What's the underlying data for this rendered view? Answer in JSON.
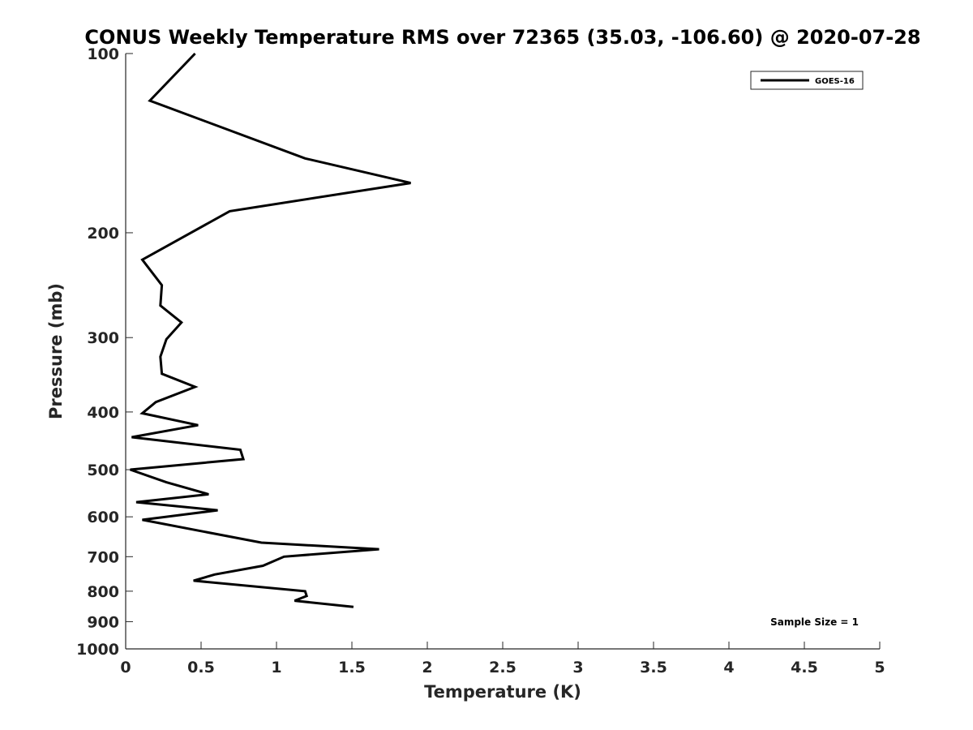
{
  "chart_data": {
    "type": "line",
    "title": "CONUS Weekly Temperature RMS over 72365 (35.03, -106.60) @ 2020-07-28",
    "xlabel": "Temperature (K)",
    "ylabel": "Pressure (mb)",
    "xlim": [
      0,
      5
    ],
    "ylim": [
      100,
      1000
    ],
    "y_scale": "log",
    "y_reversed": true,
    "x_ticks": [
      "0",
      "0.5",
      "1",
      "1.5",
      "2",
      "2.5",
      "3",
      "3.5",
      "4",
      "4.5",
      "5"
    ],
    "y_ticks": [
      "100",
      "200",
      "300",
      "400",
      "500",
      "600",
      "700",
      "800",
      "900",
      "1000"
    ],
    "grid": false,
    "legend_position": "top-right",
    "annotation": "Sample Size = 1",
    "series": [
      {
        "name": "GOES-16",
        "color": "#000000",
        "points": [
          [
            0.46,
            100
          ],
          [
            0.16,
            120
          ],
          [
            1.19,
            150
          ],
          [
            1.89,
            165
          ],
          [
            0.69,
            184
          ],
          [
            0.11,
            222
          ],
          [
            0.24,
            245
          ],
          [
            0.23,
            265
          ],
          [
            0.37,
            283
          ],
          [
            0.27,
            302
          ],
          [
            0.23,
            323
          ],
          [
            0.24,
            345
          ],
          [
            0.46,
            363
          ],
          [
            0.2,
            385
          ],
          [
            0.11,
            402
          ],
          [
            0.48,
            421
          ],
          [
            0.04,
            441
          ],
          [
            0.76,
            463
          ],
          [
            0.78,
            480
          ],
          [
            0.03,
            500
          ],
          [
            0.27,
            525
          ],
          [
            0.55,
            550
          ],
          [
            0.07,
            567
          ],
          [
            0.61,
            585
          ],
          [
            0.11,
            607
          ],
          [
            0.9,
            663
          ],
          [
            1.68,
            680
          ],
          [
            1.05,
            700
          ],
          [
            0.91,
            725
          ],
          [
            0.59,
            750
          ],
          [
            0.45,
            768
          ],
          [
            1.19,
            800
          ],
          [
            1.2,
            815
          ],
          [
            1.12,
            830
          ],
          [
            1.51,
            850
          ]
        ]
      }
    ]
  }
}
